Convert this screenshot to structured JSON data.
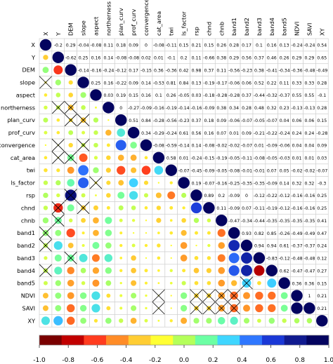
{
  "chart_data": {
    "type": "heatmap",
    "variables": [
      "X",
      "Y",
      "DEM",
      "slope",
      "aspect",
      "northerness",
      "plan_curv",
      "prof_curv",
      "convergence",
      "cat_area",
      "twi",
      "ls_factor",
      "rsp",
      "chnd",
      "chnb",
      "band1",
      "band2",
      "band3",
      "band4",
      "band5",
      "NDVI",
      "SAVI",
      "XY"
    ],
    "upper_values": [
      [
        "",
        "-0.2",
        "0.29",
        "-0.04",
        "-0.08",
        "0.11",
        "0.18",
        "0.09",
        "0",
        "-0.08",
        "-0.11",
        "0.15",
        "0.21",
        "0.15",
        "0.26",
        "0.28",
        "0.17",
        "0.1",
        "0.16",
        "0.13",
        "-0.24",
        "-0.24",
        "0.54"
      ],
      [
        "",
        "",
        "-0.62",
        "0.25",
        "0.16",
        "0.14",
        "-0.08",
        "-0.08",
        "0.02",
        "0.01",
        "-0.1",
        "0.2",
        "0.11",
        "-0.66",
        "0.38",
        "0.29",
        "0.56",
        "0.37",
        "0.46",
        "0.26",
        "0.29",
        "0.29",
        "0.65"
      ],
      [
        "",
        "",
        "",
        "-0.14",
        "-0.16",
        "-0.24",
        "-0.12",
        "0.17",
        "-0.15",
        "0.36",
        "-0.36",
        "0.42",
        "0.98",
        "0.37",
        "0.11",
        "-0.56",
        "-0.23",
        "0.38",
        "-0.41",
        "-0.34",
        "-0.36",
        "-0.48",
        "-0.49"
      ],
      [
        "",
        "",
        "",
        "",
        "0.25",
        "0.16",
        "-0.22",
        "0.09",
        "0.14",
        "-0.53",
        "0.81",
        "0.84",
        "0.13",
        "-0.19",
        "-0.17",
        "-0.06",
        "0.06",
        "0.52",
        "0.22",
        "0.11",
        "0.33",
        "0.33",
        "0.28"
      ],
      [
        "",
        "",
        "",
        "",
        "",
        "0.03",
        "0.19",
        "0.15",
        "0.16",
        "0.1",
        "0.26",
        "-0.05",
        "0.03",
        "-0.18",
        "-0.28",
        "-0.28",
        "0.37",
        "-0.44",
        "-0.32",
        "-0.37",
        "0.55",
        "0.55",
        "-0.1"
      ],
      [
        "",
        "",
        "",
        "",
        "",
        "",
        "0",
        "-0.27",
        "-0.09",
        "-0.16",
        "-0.19",
        "-0.14",
        "-0.16",
        "-0.09",
        "0.38",
        "0.34",
        "0.28",
        "0.48",
        "0.32",
        "0.23",
        "-0.13",
        "-0.13",
        "0.28"
      ],
      [
        "",
        "",
        "",
        "",
        "",
        "",
        "",
        "0.51",
        "0.84",
        "-0.28",
        "-0.56",
        "-0.23",
        "0.37",
        "0.18",
        "0.09",
        "-0.06",
        "-0.07",
        "-0.05",
        "-0.07",
        "0.04",
        "0.06",
        "0.06",
        "0.15"
      ],
      [
        "",
        "",
        "",
        "",
        "",
        "",
        "",
        "",
        "0.34",
        "-0.29",
        "-0.24",
        "0.61",
        "0.56",
        "0.16",
        "0.07",
        "0.01",
        "0.09",
        "-0.21",
        "-0.22",
        "-0.24",
        "0.24",
        "0.24",
        "-0.28"
      ],
      [
        "",
        "",
        "",
        "",
        "",
        "",
        "",
        "",
        "",
        "-0.08",
        "-0.59",
        "-0.14",
        "0.14",
        "-0.08",
        "-0.02",
        "-0.02",
        "-0.07",
        "0.01",
        "-0.09",
        "-0.06",
        "0.04",
        "0.04",
        "0.09"
      ],
      [
        "",
        "",
        "",
        "",
        "",
        "",
        "",
        "",
        "",
        "",
        "0.58",
        "0.01",
        "-0.24",
        "-0.15",
        "-0.19",
        "-0.05",
        "-0.11",
        "-0.08",
        "-0.05",
        "-0.03",
        "0.01",
        "0.01",
        "0.03"
      ],
      [
        "",
        "",
        "",
        "",
        "",
        "",
        "",
        "",
        "",
        "",
        "",
        "-0.07",
        "-0.45",
        "-0.09",
        "-0.05",
        "-0.08",
        "-0.01",
        "-0.01",
        "0.07",
        "0.05",
        "-0.02",
        "-0.02",
        "-0.07"
      ],
      [
        "",
        "",
        "",
        "",
        "",
        "",
        "",
        "",
        "",
        "",
        "",
        "",
        "0.19",
        "-0.07",
        "-0.16",
        "-0.25",
        "-0.35",
        "-0.35",
        "-0.09",
        "0.14",
        "0.32",
        "0.32",
        "-0.3"
      ],
      [
        "",
        "",
        "",
        "",
        "",
        "",
        "",
        "",
        "",
        "",
        "",
        "",
        "",
        "0.89",
        "0.2",
        "-0.09",
        "0",
        "-0.12",
        "-0.22",
        "-0.12",
        "-0.16",
        "-0.16",
        "0.25"
      ],
      [
        "",
        "",
        "",
        "",
        "",
        "",
        "",
        "",
        "",
        "",
        "",
        "",
        "",
        "",
        "0.11",
        "-0.09",
        "0.07",
        "-0.11",
        "-0.19",
        "-0.12",
        "-0.16",
        "-0.16",
        "0.25"
      ],
      [
        "",
        "",
        "",
        "",
        "",
        "",
        "",
        "",
        "",
        "",
        "",
        "",
        "",
        "",
        "",
        "-0.47",
        "-0.34",
        "-0.44",
        "-0.35",
        "-0.35",
        "-0.35",
        "-0.35",
        "0.41"
      ],
      [
        "",
        "",
        "",
        "",
        "",
        "",
        "",
        "",
        "",
        "",
        "",
        "",
        "",
        "",
        "",
        "",
        "0.93",
        "0.82",
        "0.85",
        "-0.26",
        "-0.49",
        "-0.49",
        "0.47"
      ],
      [
        "",
        "",
        "",
        "",
        "",
        "",
        "",
        "",
        "",
        "",
        "",
        "",
        "",
        "",
        "",
        "",
        "",
        "0.94",
        "0.94",
        "0.61",
        "-0.37",
        "-0.37",
        "0.24"
      ],
      [
        "",
        "",
        "",
        "",
        "",
        "",
        "",
        "",
        "",
        "",
        "",
        "",
        "",
        "",
        "",
        "",
        "",
        "",
        "-0.83",
        "-0.12",
        "-0.48",
        "-0.48",
        "0.12"
      ],
      [
        "",
        "",
        "",
        "",
        "",
        "",
        "",
        "",
        "",
        "",
        "",
        "",
        "",
        "",
        "",
        "",
        "",
        "",
        "",
        "0.62",
        "-0.47",
        "-0.47",
        "0.27"
      ],
      [
        "",
        "",
        "",
        "",
        "",
        "",
        "",
        "",
        "",
        "",
        "",
        "",
        "",
        "",
        "",
        "",
        "",
        "",
        "",
        "",
        "0.36",
        "0.36",
        "0.15"
      ],
      [
        "",
        "",
        "",
        "",
        "",
        "",
        "",
        "",
        "",
        "",
        "",
        "",
        "",
        "",
        "",
        "",
        "",
        "",
        "",
        "",
        "",
        "1",
        "0.21"
      ],
      [
        "",
        "",
        "",
        "",
        "",
        "",
        "",
        "",
        "",
        "",
        "",
        "",
        "",
        "",
        "",
        "",
        "",
        "",
        "",
        "",
        "",
        "",
        "0.21"
      ],
      [
        "",
        "",
        "",
        "",
        "",
        "",
        "",
        "",
        "",
        "",
        "",
        "",
        "",
        "",
        "",
        "",
        "",
        "",
        "",
        "",
        "",
        "",
        ""
      ]
    ],
    "lower_crossed": [
      [
        3,
        0
      ],
      [
        5,
        1
      ],
      [
        5,
        2
      ],
      [
        6,
        2
      ],
      [
        6,
        3
      ],
      [
        8,
        1
      ],
      [
        8,
        3
      ],
      [
        9,
        1
      ],
      [
        9,
        2
      ],
      [
        11,
        4
      ],
      [
        12,
        2
      ],
      [
        13,
        1
      ],
      [
        14,
        1
      ],
      [
        13,
        3
      ],
      [
        15,
        0
      ],
      [
        16,
        0
      ],
      [
        17,
        2
      ],
      [
        18,
        0
      ],
      [
        20,
        9
      ],
      [
        21,
        9
      ],
      [
        20,
        12
      ],
      [
        21,
        12
      ],
      [
        20,
        13
      ],
      [
        21,
        13
      ],
      [
        20,
        14
      ],
      [
        21,
        14
      ],
      [
        20,
        15
      ],
      [
        21,
        15
      ],
      [
        19,
        16
      ]
    ],
    "colorbar": {
      "ticks": [
        "-1.0",
        "-0.8",
        "-0.6",
        "-0.4",
        "-0.2",
        "0.0",
        "0.2",
        "0.4",
        "0.6",
        "0.8",
        "1.0"
      ],
      "colors": [
        "#7a0000",
        "#c10000",
        "#ff3c1f",
        "#ff8c27",
        "#ffcd33",
        "#ffff33",
        "#b4ff5a",
        "#6cffa4",
        "#3fd6ff",
        "#2f77ff",
        "#1a38d6",
        "#101a8f",
        "#03035f"
      ]
    },
    "grid": true
  }
}
